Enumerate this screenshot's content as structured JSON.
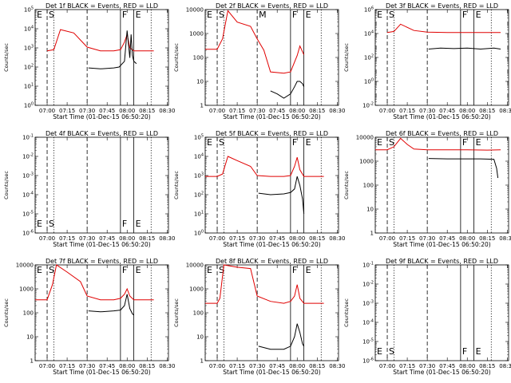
{
  "chart_data": [
    {
      "type": "line",
      "title": "Det 1f BLACK = Events, RED = LLD",
      "xlabel": "Start Time (01-Dec-15 06:50:20)",
      "ylabel": "Counts/sec",
      "xticks": [
        "07:00",
        "07:15",
        "07:30",
        "07:45",
        "08:00",
        "08:15",
        "08:30"
      ],
      "yticks": [
        "10^0",
        "10^1",
        "10^2",
        "10^3",
        "10^4",
        "10^5"
      ],
      "ylim": [
        1,
        100000
      ],
      "yscale": "log",
      "markers": [
        {
          "label": "E",
          "time": "06:51",
          "style": "dotted"
        },
        {
          "label": "S",
          "time": "07:00",
          "style": "dashed"
        },
        {
          "label": "",
          "time": "07:05",
          "style": "dotted"
        },
        {
          "label": "",
          "time": "07:30",
          "style": "dashed"
        },
        {
          "label": "F",
          "time": "07:55",
          "style": "solid"
        },
        {
          "label": "E",
          "time": "08:05",
          "style": "solid"
        },
        {
          "label": "",
          "time": "08:18",
          "style": "dotted"
        }
      ],
      "series": [
        {
          "color": "#e00000",
          "times": [
            "07:00",
            "07:05",
            "07:10",
            "07:20",
            "07:30",
            "07:40",
            "07:50",
            "07:55",
            "07:58",
            "08:00",
            "08:02",
            "08:05",
            "08:20"
          ],
          "values": [
            700,
            800,
            9000,
            6000,
            1100,
            700,
            700,
            800,
            2000,
            5000,
            1000,
            700,
            700
          ]
        },
        {
          "color": "#000000",
          "times": [
            "07:31",
            "07:40",
            "07:50",
            "07:54",
            "07:58",
            "08:00",
            "08:02",
            "08:03",
            "08:04",
            "08:05",
            "08:07"
          ],
          "values": [
            90,
            80,
            90,
            100,
            200,
            8000,
            300,
            5000,
            400,
            200,
            150
          ]
        }
      ]
    },
    {
      "type": "line",
      "title": "Det 2f BLACK = Events, RED = LLD",
      "xlabel": "Start Time (01-Dec-15 06:50:20)",
      "ylabel": "Counts/sec",
      "xticks": [
        "07:00",
        "07:15",
        "07:30",
        "07:45",
        "08:00",
        "08:15",
        "08:30"
      ],
      "yticks": [
        "1",
        "10",
        "100",
        "1000",
        "10000"
      ],
      "ylim": [
        1,
        10000
      ],
      "yscale": "log",
      "markers": [
        {
          "label": "E",
          "time": "06:51",
          "style": "dotted"
        },
        {
          "label": "S",
          "time": "07:00",
          "style": "dashed"
        },
        {
          "label": "",
          "time": "07:05",
          "style": "dotted"
        },
        {
          "label": "M",
          "time": "07:30",
          "style": "dashed"
        },
        {
          "label": "F",
          "time": "07:55",
          "style": "solid"
        },
        {
          "label": "E",
          "time": "08:05",
          "style": "solid"
        },
        {
          "label": "",
          "time": "08:18",
          "style": "dotted"
        }
      ],
      "series": [
        {
          "color": "#e00000",
          "times": [
            "06:51",
            "07:00",
            "07:04",
            "07:08",
            "07:15",
            "07:25",
            "07:30",
            "07:35",
            "07:40",
            "07:50",
            "07:55",
            "08:00",
            "08:02",
            "08:05"
          ],
          "values": [
            220,
            220,
            600,
            9000,
            3000,
            2000,
            600,
            200,
            25,
            22,
            25,
            120,
            300,
            130
          ]
        },
        {
          "color": "#000000",
          "times": [
            "07:40",
            "07:45",
            "07:50",
            "07:55",
            "07:58",
            "08:00",
            "08:02",
            "08:04",
            "08:05"
          ],
          "values": [
            4,
            3,
            2,
            3,
            6,
            10,
            10,
            8,
            6
          ]
        }
      ]
    },
    {
      "type": "line",
      "title": "Det 3f BLACK = Events, RED = LLD",
      "xlabel": "Start Time (01-Dec-15 06:50:20)",
      "ylabel": "Counts/sec",
      "xticks": [
        "07:00",
        "07:15",
        "07:30",
        "07:45",
        "08:00",
        "08:15",
        "08:30"
      ],
      "yticks": [
        "10^-2",
        "10^0",
        "10^2",
        "10^4",
        "10^6"
      ],
      "ylim": [
        0.01,
        1000000
      ],
      "yscale": "log",
      "markers": [
        {
          "label": "E",
          "time": "06:51",
          "style": "dotted"
        },
        {
          "label": "S",
          "time": "07:00",
          "style": "dashed"
        },
        {
          "label": "",
          "time": "07:05",
          "style": "dotted"
        },
        {
          "label": "",
          "time": "07:30",
          "style": "dashed"
        },
        {
          "label": "F",
          "time": "07:55",
          "style": "solid"
        },
        {
          "label": "E",
          "time": "08:05",
          "style": "solid"
        },
        {
          "label": "",
          "time": "08:18",
          "style": "dotted"
        }
      ],
      "series": [
        {
          "color": "#e00000",
          "times": [
            "07:00",
            "07:05",
            "07:10",
            "07:20",
            "07:30",
            "07:45",
            "08:00",
            "08:15",
            "08:25"
          ],
          "values": [
            12000,
            15000,
            60000,
            18000,
            13000,
            12000,
            12000,
            12000,
            12000
          ]
        },
        {
          "color": "#000000",
          "times": [
            "07:31",
            "07:40",
            "07:50",
            "08:00",
            "08:10",
            "08:20",
            "08:25"
          ],
          "values": [
            500,
            600,
            550,
            600,
            500,
            600,
            500
          ]
        }
      ]
    },
    {
      "type": "line",
      "title": "Det 4f BLACK = Events, RED = LLD",
      "xlabel": "Start Time (01-Dec-15 06:50:20)",
      "ylabel": "Counts/sec",
      "xticks": [
        "07:00",
        "07:15",
        "07:30",
        "07:45",
        "08:00",
        "08:15",
        "08:30"
      ],
      "yticks": [
        "10^-6",
        "10^-5",
        "10^-4",
        "10^-3",
        "10^-2",
        "10^-1"
      ],
      "ylim": [
        1e-06,
        0.1
      ],
      "yscale": "log",
      "markers": [
        {
          "label": "E",
          "time": "06:51",
          "style": "dotted"
        },
        {
          "label": "S",
          "time": "07:00",
          "style": "dashed"
        },
        {
          "label": "",
          "time": "07:05",
          "style": "dotted"
        },
        {
          "label": "",
          "time": "07:30",
          "style": "dashed"
        },
        {
          "label": "F",
          "time": "07:55",
          "style": "solid"
        },
        {
          "label": "E",
          "time": "08:05",
          "style": "solid"
        },
        {
          "label": "",
          "time": "08:18",
          "style": "dotted"
        }
      ],
      "series": []
    },
    {
      "type": "line",
      "title": "Det 5f BLACK = Events, RED = LLD",
      "xlabel": "Start Time (01-Dec-15 06:50:20)",
      "ylabel": "Counts/sec",
      "xticks": [
        "07:00",
        "07:15",
        "07:30",
        "07:45",
        "08:00",
        "08:15",
        "08:30"
      ],
      "yticks": [
        "10^0",
        "10^1",
        "10^2",
        "10^3",
        "10^4",
        "10^5"
      ],
      "ylim": [
        1,
        100000
      ],
      "yscale": "log",
      "markers": [
        {
          "label": "E",
          "time": "06:51",
          "style": "dotted"
        },
        {
          "label": "S",
          "time": "07:00",
          "style": "dashed"
        },
        {
          "label": "",
          "time": "07:05",
          "style": "dotted"
        },
        {
          "label": "",
          "time": "07:30",
          "style": "dashed"
        },
        {
          "label": "F",
          "time": "07:55",
          "style": "solid"
        },
        {
          "label": "E",
          "time": "08:05",
          "style": "solid"
        },
        {
          "label": "",
          "time": "08:18",
          "style": "dotted"
        }
      ],
      "series": [
        {
          "color": "#e00000",
          "times": [
            "06:51",
            "07:00",
            "07:04",
            "07:08",
            "07:15",
            "07:25",
            "07:30",
            "07:40",
            "07:50",
            "07:55",
            "07:58",
            "08:00",
            "08:02",
            "08:05",
            "08:20"
          ],
          "values": [
            900,
            900,
            1200,
            10000,
            6000,
            3000,
            1000,
            900,
            900,
            1000,
            3000,
            9000,
            2000,
            900,
            900
          ]
        },
        {
          "color": "#000000",
          "times": [
            "07:31",
            "07:40",
            "07:50",
            "07:55",
            "07:58",
            "08:00",
            "08:02",
            "08:04",
            "08:05"
          ],
          "values": [
            120,
            100,
            110,
            130,
            200,
            900,
            300,
            60,
            10
          ]
        }
      ]
    },
    {
      "type": "line",
      "title": "Det 6f BLACK = Events, RED = LLD",
      "xlabel": "Start Time (01-Dec-15 06:50:20)",
      "ylabel": "Counts/sec",
      "xticks": [
        "07:00",
        "07:15",
        "07:30",
        "07:45",
        "08:00",
        "08:15",
        "08:30"
      ],
      "yticks": [
        "1",
        "10",
        "100",
        "1000",
        "10000"
      ],
      "ylim": [
        1,
        10000
      ],
      "yscale": "log",
      "markers": [
        {
          "label": "E",
          "time": "06:51",
          "style": "dotted"
        },
        {
          "label": "S",
          "time": "07:00",
          "style": "dashed"
        },
        {
          "label": "",
          "time": "07:05",
          "style": "dotted"
        },
        {
          "label": "",
          "time": "07:30",
          "style": "dashed"
        },
        {
          "label": "F",
          "time": "07:55",
          "style": "solid"
        },
        {
          "label": "E",
          "time": "08:05",
          "style": "solid"
        },
        {
          "label": "",
          "time": "08:18",
          "style": "dotted"
        }
      ],
      "series": [
        {
          "color": "#e00000",
          "times": [
            "06:51",
            "07:00",
            "07:05",
            "07:10",
            "07:15",
            "07:20",
            "07:30",
            "07:45",
            "08:00",
            "08:15",
            "08:25"
          ],
          "values": [
            3000,
            3000,
            4000,
            9000,
            5000,
            3200,
            3000,
            3000,
            3000,
            2900,
            3000
          ]
        },
        {
          "color": "#000000",
          "times": [
            "07:31",
            "07:45",
            "08:00",
            "08:10",
            "08:20",
            "08:22",
            "08:23"
          ],
          "values": [
            1300,
            1250,
            1250,
            1250,
            1200,
            500,
            200
          ]
        }
      ]
    },
    {
      "type": "line",
      "title": "Det 7f BLACK = Events, RED = LLD",
      "xlabel": "Start Time (01-Dec-15 06:50:20)",
      "ylabel": "Counts/sec",
      "xticks": [
        "07:00",
        "07:15",
        "07:30",
        "07:45",
        "08:00",
        "08:15",
        "08:30"
      ],
      "yticks": [
        "1",
        "10",
        "100",
        "1000",
        "10000"
      ],
      "ylim": [
        1,
        10000
      ],
      "yscale": "log",
      "markers": [
        {
          "label": "E",
          "time": "06:51",
          "style": "dotted"
        },
        {
          "label": "S",
          "time": "07:00",
          "style": "dashed"
        },
        {
          "label": "",
          "time": "07:05",
          "style": "dotted"
        },
        {
          "label": "",
          "time": "07:30",
          "style": "dashed"
        },
        {
          "label": "F",
          "time": "07:55",
          "style": "solid"
        },
        {
          "label": "E",
          "time": "08:05",
          "style": "solid"
        },
        {
          "label": "",
          "time": "08:18",
          "style": "dotted"
        }
      ],
      "series": [
        {
          "color": "#e00000",
          "times": [
            "06:51",
            "07:00",
            "07:04",
            "07:07",
            "07:15",
            "07:25",
            "07:30",
            "07:40",
            "07:50",
            "07:55",
            "07:58",
            "08:00",
            "08:02",
            "08:05",
            "08:20"
          ],
          "values": [
            350,
            350,
            1500,
            10000,
            5000,
            2000,
            500,
            350,
            350,
            400,
            600,
            1000,
            500,
            350,
            350
          ]
        },
        {
          "color": "#000000",
          "times": [
            "07:31",
            "07:40",
            "07:50",
            "07:55",
            "07:58",
            "08:00",
            "08:02",
            "08:04",
            "08:05"
          ],
          "values": [
            120,
            110,
            120,
            130,
            200,
            600,
            150,
            90,
            80
          ]
        }
      ]
    },
    {
      "type": "line",
      "title": "Det 8f BLACK = Events, RED = LLD",
      "xlabel": "Start Time (01-Dec-15 06:50:20)",
      "ylabel": "Counts/sec",
      "xticks": [
        "07:00",
        "07:15",
        "07:30",
        "07:45",
        "08:00",
        "08:15",
        "08:30"
      ],
      "yticks": [
        "1",
        "10",
        "100",
        "1000",
        "10000"
      ],
      "ylim": [
        1,
        10000
      ],
      "yscale": "log",
      "markers": [
        {
          "label": "E",
          "time": "06:51",
          "style": "dotted"
        },
        {
          "label": "S",
          "time": "07:00",
          "style": "dashed"
        },
        {
          "label": "",
          "time": "07:05",
          "style": "dotted"
        },
        {
          "label": "",
          "time": "07:30",
          "style": "dashed"
        },
        {
          "label": "F",
          "time": "07:55",
          "style": "solid"
        },
        {
          "label": "E",
          "time": "08:05",
          "style": "solid"
        },
        {
          "label": "",
          "time": "08:18",
          "style": "dotted"
        }
      ],
      "series": [
        {
          "color": "#e00000",
          "times": [
            "06:51",
            "07:00",
            "07:02",
            "07:05",
            "07:15",
            "07:25",
            "07:30",
            "07:40",
            "07:50",
            "07:55",
            "07:58",
            "08:00",
            "08:02",
            "08:05",
            "08:20"
          ],
          "values": [
            250,
            250,
            400,
            10000,
            8000,
            7000,
            500,
            300,
            250,
            300,
            500,
            1500,
            400,
            250,
            250
          ]
        },
        {
          "color": "#000000",
          "times": [
            "07:31",
            "07:40",
            "07:50",
            "07:55",
            "07:58",
            "08:00",
            "08:02",
            "08:04",
            "08:05"
          ],
          "values": [
            4,
            3,
            3,
            4,
            10,
            35,
            15,
            5,
            4
          ]
        }
      ]
    },
    {
      "type": "line",
      "title": "Det 9f BLACK = Events, RED = LLD",
      "xlabel": "Start Time (01-Dec-15 06:50:20)",
      "ylabel": "Counts/sec",
      "xticks": [
        "07:00",
        "07:15",
        "07:30",
        "07:45",
        "08:00",
        "08:15",
        "08:30"
      ],
      "yticks": [
        "10^-6",
        "10^-5",
        "10^-4",
        "10^-3",
        "10^-2",
        "10^-1"
      ],
      "ylim": [
        1e-06,
        0.1
      ],
      "yscale": "log",
      "markers": [
        {
          "label": "E",
          "time": "06:51",
          "style": "dotted"
        },
        {
          "label": "S",
          "time": "07:00",
          "style": "dashed"
        },
        {
          "label": "",
          "time": "07:05",
          "style": "dotted"
        },
        {
          "label": "",
          "time": "07:30",
          "style": "dashed"
        },
        {
          "label": "F",
          "time": "07:55",
          "style": "solid"
        },
        {
          "label": "E",
          "time": "08:05",
          "style": "solid"
        },
        {
          "label": "",
          "time": "08:18",
          "style": "dotted"
        }
      ],
      "series": []
    }
  ]
}
